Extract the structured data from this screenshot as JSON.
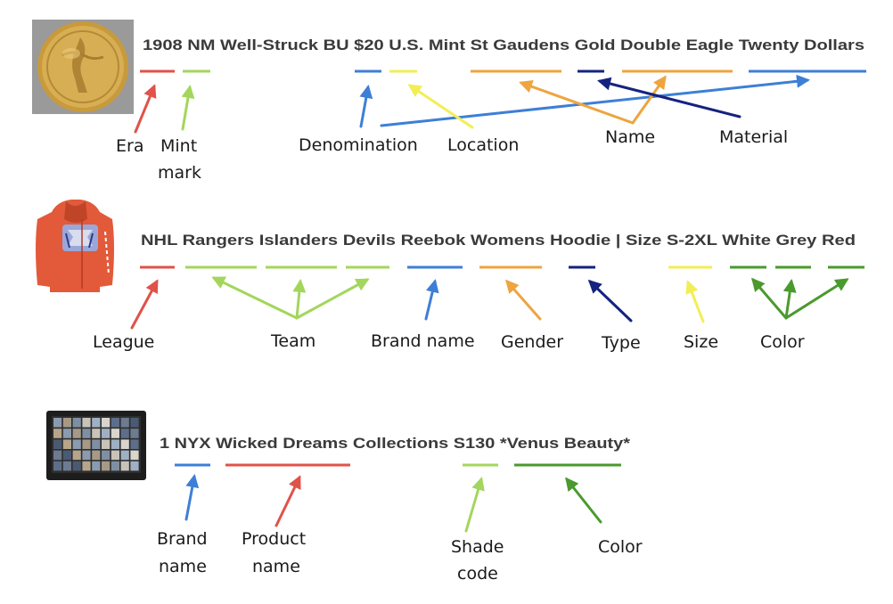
{
  "colors": {
    "red": "#e0524a",
    "light_green": "#a3d65c",
    "blue": "#3d7fd6",
    "yellow": "#f2ee55",
    "orange": "#eda53f",
    "navy": "#14237f",
    "green": "#4a9a2e",
    "text": "#1a1a1a",
    "title_text": "#3a3a3a"
  },
  "examples": [
    {
      "image": "gold-coin",
      "title": "1908 NM Well-Struck BU $20 U.S. Mint St Gaudens Gold Double Eagle Twenty Dollars",
      "labels": [
        {
          "id": "era",
          "lines": [
            "Era"
          ]
        },
        {
          "id": "mint-mark",
          "lines": [
            "Mint",
            "mark"
          ]
        },
        {
          "id": "denomination",
          "lines": [
            "Denomination"
          ]
        },
        {
          "id": "location",
          "lines": [
            "Location"
          ]
        },
        {
          "id": "name",
          "lines": [
            "Name"
          ]
        },
        {
          "id": "material",
          "lines": [
            "Material"
          ]
        }
      ]
    },
    {
      "image": "red-hoodie",
      "title": "NHL Rangers Islanders Devils Reebok Womens Hoodie | Size S-2XL White Grey Red",
      "labels": [
        {
          "id": "league",
          "lines": [
            "League"
          ]
        },
        {
          "id": "team",
          "lines": [
            "Team"
          ]
        },
        {
          "id": "brand-name",
          "lines": [
            "Brand name"
          ]
        },
        {
          "id": "gender",
          "lines": [
            "Gender"
          ]
        },
        {
          "id": "type",
          "lines": [
            "Type"
          ]
        },
        {
          "id": "size",
          "lines": [
            "Size"
          ]
        },
        {
          "id": "color",
          "lines": [
            "Color"
          ]
        }
      ]
    },
    {
      "image": "eyeshadow-palette",
      "title": "1 NYX Wicked Dreams Collections S130 *Venus Beauty*",
      "labels": [
        {
          "id": "brand-name",
          "lines": [
            "Brand",
            "name"
          ]
        },
        {
          "id": "product-name",
          "lines": [
            "Product",
            "name"
          ]
        },
        {
          "id": "shade-code",
          "lines": [
            "Shade",
            "code"
          ]
        },
        {
          "id": "color",
          "lines": [
            "Color"
          ]
        }
      ]
    }
  ]
}
